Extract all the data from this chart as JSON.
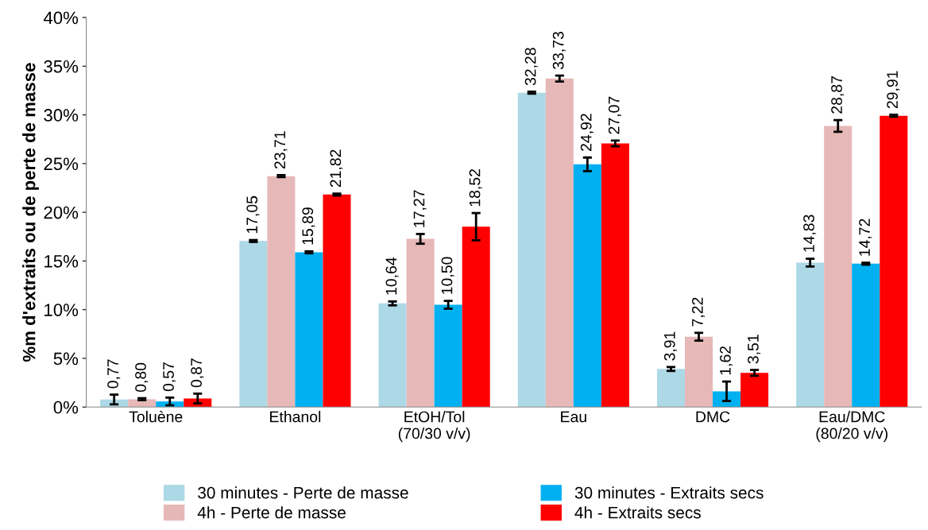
{
  "chart_data": {
    "type": "bar",
    "ylabel": "%m d'extraits ou de perte de masse",
    "categories": [
      "Toluène",
      "Ethanol",
      "EtOH/Tol\n(70/30 v/v)",
      "Eau",
      "DMC",
      "Eau/DMC\n(80/20 v/v)"
    ],
    "series": [
      {
        "name": "30 minutes - Perte de masse",
        "color": "#add8e6",
        "values": [
          0.77,
          17.05,
          10.64,
          32.28,
          3.91,
          14.83
        ],
        "errors": [
          0.5,
          0.1,
          0.2,
          0.1,
          0.2,
          0.4
        ],
        "value_labels": [
          "0,77",
          "17,05",
          "10,64",
          "32,28",
          "3,91",
          "14,83"
        ]
      },
      {
        "name": "4h - Perte de masse",
        "color": "#e6b8b7",
        "values": [
          0.8,
          23.71,
          17.27,
          33.73,
          7.22,
          28.87
        ],
        "errors": [
          0.1,
          0.1,
          0.5,
          0.3,
          0.4,
          0.6
        ],
        "value_labels": [
          "0,80",
          "23,71",
          "17,27",
          "33,73",
          "7,22",
          "28,87"
        ]
      },
      {
        "name": "30 minutes - Extraits secs",
        "color": "#00b0f0",
        "values": [
          0.57,
          15.89,
          10.5,
          24.92,
          1.62,
          14.72
        ],
        "errors": [
          0.4,
          0.1,
          0.4,
          0.7,
          1.0,
          0.1
        ],
        "value_labels": [
          "0,57",
          "15,89",
          "10,50",
          "24,92",
          "1,62",
          "14,72"
        ]
      },
      {
        "name": "4h - Extraits secs",
        "color": "#ff0000",
        "values": [
          0.87,
          21.82,
          18.52,
          27.07,
          3.51,
          29.91
        ],
        "errors": [
          0.5,
          0.1,
          1.4,
          0.3,
          0.3,
          0.1
        ],
        "value_labels": [
          "0,87",
          "21,82",
          "18,52",
          "27,07",
          "3,51",
          "29,91"
        ]
      }
    ],
    "ylim": [
      0,
      40
    ],
    "yticks": [
      {
        "value": 0,
        "label": "0%"
      },
      {
        "value": 5,
        "label": "5%"
      },
      {
        "value": 10,
        "label": "10%"
      },
      {
        "value": 15,
        "label": "15%"
      },
      {
        "value": 20,
        "label": "20%"
      },
      {
        "value": 25,
        "label": "25%"
      },
      {
        "value": 30,
        "label": "30%"
      },
      {
        "value": 35,
        "label": "35%"
      },
      {
        "value": 40,
        "label": "40%"
      }
    ],
    "grid": false,
    "legend": "bottom"
  }
}
